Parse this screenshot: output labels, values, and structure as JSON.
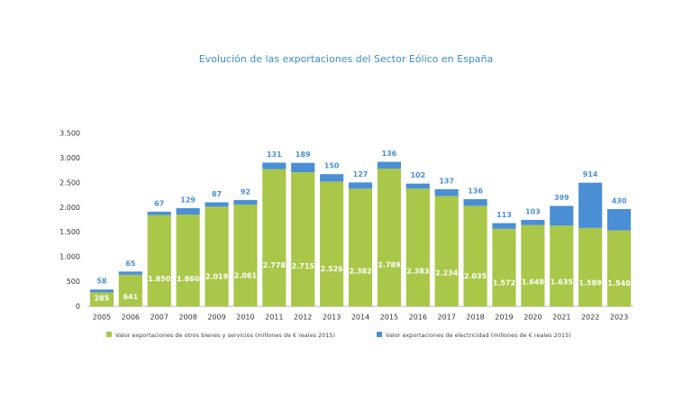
{
  "chart_data": {
    "type": "stacked_bar",
    "title": "Evolución de las exportaciones del Sector Eólico en España",
    "categories": [
      "2005",
      "2006",
      "2007",
      "2008",
      "2009",
      "2010",
      "2011",
      "2012",
      "2013",
      "2014",
      "2015",
      "2016",
      "2017",
      "2018",
      "2019",
      "2020",
      "2021",
      "2022",
      "2023"
    ],
    "series": [
      {
        "name": "Valor exportaciones de otros bienes y servicios (millones de € reales 2015)",
        "color": "#a9c748",
        "values": [
          285,
          641,
          1850,
          1860,
          2019,
          2061,
          2778,
          2715,
          2526,
          2382,
          2789,
          2383,
          2234,
          2035,
          1572,
          1648,
          1635,
          1589,
          1540
        ],
        "value_labels": [
          "285",
          "641",
          "1.850",
          "1.860",
          "2.019",
          "2.061",
          "2.778",
          "2.715",
          "2.526",
          "2.382",
          "2.789",
          "2.383",
          "2.234",
          "2.035",
          "1.572",
          "1.648",
          "1.635",
          "1.589",
          "1.540"
        ]
      },
      {
        "name": "Valor exportaciones de electricidad (millones de € reales 2015)",
        "color": "#4a8fd6",
        "values": [
          58,
          65,
          67,
          129,
          87,
          92,
          131,
          189,
          150,
          127,
          136,
          102,
          137,
          136,
          113,
          103,
          399,
          914,
          430
        ]
      }
    ],
    "ylim": [
      0,
      3500
    ],
    "yticks": [
      0,
      500,
      {
        "value": 1000,
        "label": "1.000"
      },
      {
        "value": 1500,
        "label": "1.500"
      },
      {
        "value": 2000,
        "label": "2.000"
      },
      {
        "value": 2500,
        "label": "2.500"
      },
      {
        "value": 3000,
        "label": "3.000"
      },
      {
        "value": 3500,
        "label": "3.500"
      }
    ],
    "grid": false,
    "legend": "bottom"
  }
}
